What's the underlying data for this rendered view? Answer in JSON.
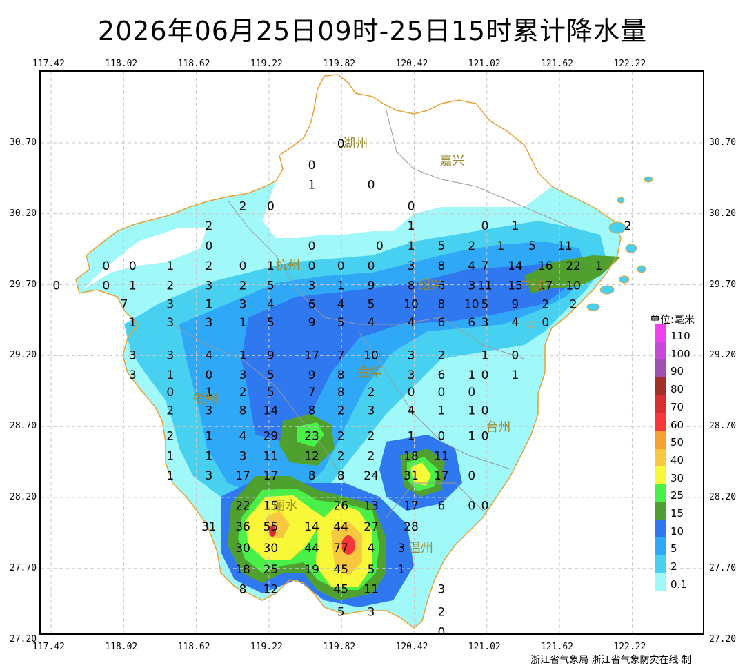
{
  "title": "2026年06月25日09时-25日15时累计降水量",
  "credit": "浙江省气象局  浙江省气象防灾在线 制",
  "axes": {
    "lon_ticks": [
      "117.42",
      "118.02",
      "118.62",
      "119.22",
      "119.82",
      "120.42",
      "121.02",
      "121.62",
      "122.22"
    ],
    "lat_ticks": [
      "30.70",
      "30.20",
      "29.70",
      "29.20",
      "28.70",
      "28.20",
      "27.70",
      "27.20"
    ]
  },
  "legend": {
    "title": "单位:毫米",
    "levels": [
      {
        "label": "110",
        "color": "#f040f0"
      },
      {
        "label": "100",
        "color": "#c848d8"
      },
      {
        "label": "90",
        "color": "#a050b0"
      },
      {
        "label": "80",
        "color": "#a03028"
      },
      {
        "label": "70",
        "color": "#d83030"
      },
      {
        "label": "60",
        "color": "#f83838"
      },
      {
        "label": "50",
        "color": "#f8a030"
      },
      {
        "label": "40",
        "color": "#f8c840"
      },
      {
        "label": "30",
        "color": "#f8f838"
      },
      {
        "label": "25",
        "color": "#48f048"
      },
      {
        "label": "15",
        "color": "#50a030"
      },
      {
        "label": "10",
        "color": "#3078f0"
      },
      {
        "label": "5",
        "color": "#30a8f8"
      },
      {
        "label": "2",
        "color": "#48d0f0"
      },
      {
        "label": "0.1",
        "color": "#a0f8f8"
      }
    ]
  },
  "cities": [
    {
      "name": "湖州",
      "lon": 119.94,
      "lat": 30.7
    },
    {
      "name": "嘉兴",
      "lon": 120.74,
      "lat": 30.58
    },
    {
      "name": "杭州",
      "lon": 119.38,
      "lat": 29.84
    },
    {
      "name": "绍兴",
      "lon": 120.56,
      "lat": 29.7
    },
    {
      "name": "宁波",
      "lon": 121.4,
      "lat": 29.7
    },
    {
      "name": "衢州",
      "lon": 118.7,
      "lat": 28.9
    },
    {
      "name": "金华",
      "lon": 120.06,
      "lat": 29.09
    },
    {
      "name": "台州",
      "lon": 121.12,
      "lat": 28.7
    },
    {
      "name": "丽水",
      "lon": 119.36,
      "lat": 28.15
    },
    {
      "name": "温州",
      "lon": 120.48,
      "lat": 27.85
    }
  ],
  "stations": [
    {
      "v": "0",
      "lon": 119.82,
      "lat": 30.7
    },
    {
      "v": "0",
      "lon": 119.58,
      "lat": 30.55
    },
    {
      "v": "1",
      "lon": 119.58,
      "lat": 30.41
    },
    {
      "v": "0",
      "lon": 120.07,
      "lat": 30.41
    },
    {
      "v": "2",
      "lon": 119.01,
      "lat": 30.26
    },
    {
      "v": "0",
      "lon": 119.24,
      "lat": 30.26
    },
    {
      "v": "0",
      "lon": 120.4,
      "lat": 30.26
    },
    {
      "v": "2",
      "lon": 118.73,
      "lat": 30.12
    },
    {
      "v": "1",
      "lon": 120.4,
      "lat": 30.12
    },
    {
      "v": "0",
      "lon": 121.01,
      "lat": 30.12
    },
    {
      "v": "1",
      "lon": 121.26,
      "lat": 30.12
    },
    {
      "v": "2",
      "lon": 122.19,
      "lat": 30.12
    },
    {
      "v": "0",
      "lon": 118.73,
      "lat": 29.98
    },
    {
      "v": "0",
      "lon": 119.58,
      "lat": 29.98
    },
    {
      "v": "0",
      "lon": 120.14,
      "lat": 29.98
    },
    {
      "v": "1",
      "lon": 120.4,
      "lat": 29.98
    },
    {
      "v": "5",
      "lon": 120.65,
      "lat": 29.98
    },
    {
      "v": "2",
      "lon": 120.9,
      "lat": 29.98
    },
    {
      "v": "1",
      "lon": 121.14,
      "lat": 29.98
    },
    {
      "v": "5",
      "lon": 121.4,
      "lat": 29.98
    },
    {
      "v": "11",
      "lon": 121.67,
      "lat": 29.98
    },
    {
      "v": "0",
      "lon": 117.88,
      "lat": 29.84
    },
    {
      "v": "0",
      "lon": 118.1,
      "lat": 29.84
    },
    {
      "v": "1",
      "lon": 118.41,
      "lat": 29.84
    },
    {
      "v": "2",
      "lon": 118.73,
      "lat": 29.84
    },
    {
      "v": "0",
      "lon": 119.01,
      "lat": 29.84
    },
    {
      "v": "1",
      "lon": 119.24,
      "lat": 29.84
    },
    {
      "v": "0",
      "lon": 119.58,
      "lat": 29.84
    },
    {
      "v": "0",
      "lon": 119.82,
      "lat": 29.84
    },
    {
      "v": "0",
      "lon": 120.07,
      "lat": 29.84
    },
    {
      "v": "3",
      "lon": 120.4,
      "lat": 29.84
    },
    {
      "v": "8",
      "lon": 120.65,
      "lat": 29.84
    },
    {
      "v": "4",
      "lon": 120.9,
      "lat": 29.84
    },
    {
      "v": "7",
      "lon": 121.01,
      "lat": 29.84
    },
    {
      "v": "14",
      "lon": 121.26,
      "lat": 29.84
    },
    {
      "v": "16",
      "lon": 121.51,
      "lat": 29.84
    },
    {
      "v": "22",
      "lon": 121.74,
      "lat": 29.84
    },
    {
      "v": "1",
      "lon": 121.95,
      "lat": 29.84
    },
    {
      "v": "0",
      "lon": 117.47,
      "lat": 29.7
    },
    {
      "v": "0",
      "lon": 117.88,
      "lat": 29.7
    },
    {
      "v": "1",
      "lon": 118.1,
      "lat": 29.7
    },
    {
      "v": "2",
      "lon": 118.41,
      "lat": 29.7
    },
    {
      "v": "3",
      "lon": 118.73,
      "lat": 29.7
    },
    {
      "v": "2",
      "lon": 119.01,
      "lat": 29.7
    },
    {
      "v": "5",
      "lon": 119.24,
      "lat": 29.7
    },
    {
      "v": "3",
      "lon": 119.58,
      "lat": 29.7
    },
    {
      "v": "1",
      "lon": 119.82,
      "lat": 29.7
    },
    {
      "v": "9",
      "lon": 120.07,
      "lat": 29.7
    },
    {
      "v": "8",
      "lon": 120.4,
      "lat": 29.7
    },
    {
      "v": "6",
      "lon": 120.65,
      "lat": 29.7
    },
    {
      "v": "3",
      "lon": 120.9,
      "lat": 29.7
    },
    {
      "v": "11",
      "lon": 121.01,
      "lat": 29.7
    },
    {
      "v": "15",
      "lon": 121.26,
      "lat": 29.7
    },
    {
      "v": "17",
      "lon": 121.51,
      "lat": 29.7
    },
    {
      "v": "10",
      "lon": 121.74,
      "lat": 29.7
    },
    {
      "v": "7",
      "lon": 118.03,
      "lat": 29.57
    },
    {
      "v": "3",
      "lon": 118.41,
      "lat": 29.57
    },
    {
      "v": "1",
      "lon": 118.73,
      "lat": 29.57
    },
    {
      "v": "3",
      "lon": 119.01,
      "lat": 29.57
    },
    {
      "v": "4",
      "lon": 119.24,
      "lat": 29.57
    },
    {
      "v": "6",
      "lon": 119.58,
      "lat": 29.57
    },
    {
      "v": "4",
      "lon": 119.82,
      "lat": 29.57
    },
    {
      "v": "5",
      "lon": 120.07,
      "lat": 29.57
    },
    {
      "v": "10",
      "lon": 120.4,
      "lat": 29.57
    },
    {
      "v": "8",
      "lon": 120.65,
      "lat": 29.57
    },
    {
      "v": "10",
      "lon": 120.9,
      "lat": 29.57
    },
    {
      "v": "5",
      "lon": 121.01,
      "lat": 29.57
    },
    {
      "v": "9",
      "lon": 121.26,
      "lat": 29.57
    },
    {
      "v": "2",
      "lon": 121.51,
      "lat": 29.57
    },
    {
      "v": "2",
      "lon": 121.74,
      "lat": 29.57
    },
    {
      "v": "1",
      "lon": 118.1,
      "lat": 29.44
    },
    {
      "v": "3",
      "lon": 118.41,
      "lat": 29.44
    },
    {
      "v": "3",
      "lon": 118.73,
      "lat": 29.44
    },
    {
      "v": "1",
      "lon": 119.01,
      "lat": 29.44
    },
    {
      "v": "5",
      "lon": 119.24,
      "lat": 29.44
    },
    {
      "v": "9",
      "lon": 119.58,
      "lat": 29.44
    },
    {
      "v": "5",
      "lon": 119.82,
      "lat": 29.44
    },
    {
      "v": "4",
      "lon": 120.07,
      "lat": 29.44
    },
    {
      "v": "4",
      "lon": 120.4,
      "lat": 29.44
    },
    {
      "v": "6",
      "lon": 120.65,
      "lat": 29.44
    },
    {
      "v": "6",
      "lon": 120.9,
      "lat": 29.44
    },
    {
      "v": "3",
      "lon": 121.01,
      "lat": 29.44
    },
    {
      "v": "4",
      "lon": 121.26,
      "lat": 29.44
    },
    {
      "v": "0",
      "lon": 121.51,
      "lat": 29.44
    },
    {
      "v": "3",
      "lon": 118.1,
      "lat": 29.21
    },
    {
      "v": "3",
      "lon": 118.41,
      "lat": 29.21
    },
    {
      "v": "4",
      "lon": 118.73,
      "lat": 29.21
    },
    {
      "v": "1",
      "lon": 119.01,
      "lat": 29.21
    },
    {
      "v": "9",
      "lon": 119.24,
      "lat": 29.21
    },
    {
      "v": "17",
      "lon": 119.58,
      "lat": 29.21
    },
    {
      "v": "7",
      "lon": 119.82,
      "lat": 29.21
    },
    {
      "v": "10",
      "lon": 120.07,
      "lat": 29.21
    },
    {
      "v": "3",
      "lon": 120.4,
      "lat": 29.21
    },
    {
      "v": "2",
      "lon": 120.65,
      "lat": 29.21
    },
    {
      "v": "1",
      "lon": 121.01,
      "lat": 29.21
    },
    {
      "v": "0",
      "lon": 121.26,
      "lat": 29.21
    },
    {
      "v": "3",
      "lon": 118.1,
      "lat": 29.07
    },
    {
      "v": "1",
      "lon": 118.41,
      "lat": 29.07
    },
    {
      "v": "0",
      "lon": 118.73,
      "lat": 29.07
    },
    {
      "v": "3",
      "lon": 119.01,
      "lat": 29.07
    },
    {
      "v": "5",
      "lon": 119.24,
      "lat": 29.07
    },
    {
      "v": "9",
      "lon": 119.58,
      "lat": 29.07
    },
    {
      "v": "8",
      "lon": 119.82,
      "lat": 29.07
    },
    {
      "v": "3",
      "lon": 120.4,
      "lat": 29.07
    },
    {
      "v": "6",
      "lon": 120.65,
      "lat": 29.07
    },
    {
      "v": "1",
      "lon": 120.9,
      "lat": 29.07
    },
    {
      "v": "0",
      "lon": 121.01,
      "lat": 29.07
    },
    {
      "v": "1",
      "lon": 121.26,
      "lat": 29.07
    },
    {
      "v": "0",
      "lon": 118.41,
      "lat": 28.95
    },
    {
      "v": "1",
      "lon": 118.73,
      "lat": 28.95
    },
    {
      "v": "2",
      "lon": 119.01,
      "lat": 28.95
    },
    {
      "v": "5",
      "lon": 119.24,
      "lat": 28.95
    },
    {
      "v": "7",
      "lon": 119.58,
      "lat": 28.95
    },
    {
      "v": "8",
      "lon": 119.82,
      "lat": 28.95
    },
    {
      "v": "2",
      "lon": 120.07,
      "lat": 28.95
    },
    {
      "v": "0",
      "lon": 120.4,
      "lat": 28.95
    },
    {
      "v": "0",
      "lon": 120.65,
      "lat": 28.95
    },
    {
      "v": "0",
      "lon": 120.9,
      "lat": 28.95
    },
    {
      "v": "2",
      "lon": 118.41,
      "lat": 28.82
    },
    {
      "v": "3",
      "lon": 118.73,
      "lat": 28.82
    },
    {
      "v": "8",
      "lon": 119.01,
      "lat": 28.82
    },
    {
      "v": "14",
      "lon": 119.24,
      "lat": 28.82
    },
    {
      "v": "8",
      "lon": 119.58,
      "lat": 28.82
    },
    {
      "v": "2",
      "lon": 119.82,
      "lat": 28.82
    },
    {
      "v": "3",
      "lon": 120.07,
      "lat": 28.82
    },
    {
      "v": "4",
      "lon": 120.4,
      "lat": 28.82
    },
    {
      "v": "1",
      "lon": 120.65,
      "lat": 28.82
    },
    {
      "v": "1",
      "lon": 120.9,
      "lat": 28.82
    },
    {
      "v": "0",
      "lon": 121.01,
      "lat": 28.82
    },
    {
      "v": "2",
      "lon": 118.41,
      "lat": 28.64
    },
    {
      "v": "1",
      "lon": 118.73,
      "lat": 28.64
    },
    {
      "v": "4",
      "lon": 119.01,
      "lat": 28.64
    },
    {
      "v": "29",
      "lon": 119.24,
      "lat": 28.64
    },
    {
      "v": "23",
      "lon": 119.58,
      "lat": 28.64
    },
    {
      "v": "2",
      "lon": 119.82,
      "lat": 28.64
    },
    {
      "v": "2",
      "lon": 120.07,
      "lat": 28.64
    },
    {
      "v": "1",
      "lon": 120.4,
      "lat": 28.64
    },
    {
      "v": "0",
      "lon": 120.65,
      "lat": 28.64
    },
    {
      "v": "1",
      "lon": 120.9,
      "lat": 28.64
    },
    {
      "v": "0",
      "lon": 121.01,
      "lat": 28.64
    },
    {
      "v": "1",
      "lon": 118.41,
      "lat": 28.5
    },
    {
      "v": "1",
      "lon": 118.73,
      "lat": 28.5
    },
    {
      "v": "3",
      "lon": 119.01,
      "lat": 28.5
    },
    {
      "v": "11",
      "lon": 119.24,
      "lat": 28.5
    },
    {
      "v": "12",
      "lon": 119.58,
      "lat": 28.5
    },
    {
      "v": "2",
      "lon": 119.82,
      "lat": 28.5
    },
    {
      "v": "2",
      "lon": 120.07,
      "lat": 28.5
    },
    {
      "v": "18",
      "lon": 120.4,
      "lat": 28.5
    },
    {
      "v": "11",
      "lon": 120.65,
      "lat": 28.5
    },
    {
      "v": "1",
      "lon": 118.41,
      "lat": 28.36
    },
    {
      "v": "3",
      "lon": 118.73,
      "lat": 28.36
    },
    {
      "v": "17",
      "lon": 119.01,
      "lat": 28.36
    },
    {
      "v": "17",
      "lon": 119.24,
      "lat": 28.36
    },
    {
      "v": "8",
      "lon": 119.58,
      "lat": 28.36
    },
    {
      "v": "8",
      "lon": 119.82,
      "lat": 28.36
    },
    {
      "v": "24",
      "lon": 120.07,
      "lat": 28.36
    },
    {
      "v": "31",
      "lon": 120.4,
      "lat": 28.36
    },
    {
      "v": "17",
      "lon": 120.65,
      "lat": 28.36
    },
    {
      "v": "0",
      "lon": 120.9,
      "lat": 28.36
    },
    {
      "v": "22",
      "lon": 119.01,
      "lat": 28.15
    },
    {
      "v": "15",
      "lon": 119.24,
      "lat": 28.15
    },
    {
      "v": "26",
      "lon": 119.82,
      "lat": 28.15
    },
    {
      "v": "13",
      "lon": 120.07,
      "lat": 28.15
    },
    {
      "v": "17",
      "lon": 120.4,
      "lat": 28.15
    },
    {
      "v": "6",
      "lon": 120.65,
      "lat": 28.15
    },
    {
      "v": "0",
      "lon": 120.9,
      "lat": 28.15
    },
    {
      "v": "0",
      "lon": 121.01,
      "lat": 28.15
    },
    {
      "v": "31",
      "lon": 118.73,
      "lat": 28.0
    },
    {
      "v": "36",
      "lon": 119.01,
      "lat": 28.0
    },
    {
      "v": "55",
      "lon": 119.24,
      "lat": 28.0
    },
    {
      "v": "14",
      "lon": 119.58,
      "lat": 28.0
    },
    {
      "v": "44",
      "lon": 119.82,
      "lat": 28.0
    },
    {
      "v": "27",
      "lon": 120.07,
      "lat": 28.0
    },
    {
      "v": "28",
      "lon": 120.4,
      "lat": 28.0
    },
    {
      "v": "30",
      "lon": 119.01,
      "lat": 27.85
    },
    {
      "v": "30",
      "lon": 119.24,
      "lat": 27.85
    },
    {
      "v": "44",
      "lon": 119.58,
      "lat": 27.85
    },
    {
      "v": "77",
      "lon": 119.82,
      "lat": 27.85
    },
    {
      "v": "4",
      "lon": 120.07,
      "lat": 27.85
    },
    {
      "v": "3",
      "lon": 120.32,
      "lat": 27.85
    },
    {
      "v": "18",
      "lon": 119.01,
      "lat": 27.7
    },
    {
      "v": "25",
      "lon": 119.24,
      "lat": 27.7
    },
    {
      "v": "19",
      "lon": 119.58,
      "lat": 27.7
    },
    {
      "v": "45",
      "lon": 119.82,
      "lat": 27.7
    },
    {
      "v": "5",
      "lon": 120.07,
      "lat": 27.7
    },
    {
      "v": "1",
      "lon": 120.32,
      "lat": 27.7
    },
    {
      "v": "8",
      "lon": 119.01,
      "lat": 27.56
    },
    {
      "v": "12",
      "lon": 119.24,
      "lat": 27.56
    },
    {
      "v": "45",
      "lon": 119.82,
      "lat": 27.56
    },
    {
      "v": "11",
      "lon": 120.07,
      "lat": 27.56
    },
    {
      "v": "3",
      "lon": 120.65,
      "lat": 27.56
    },
    {
      "v": "5",
      "lon": 119.82,
      "lat": 27.4
    },
    {
      "v": "3",
      "lon": 120.07,
      "lat": 27.4
    },
    {
      "v": "2",
      "lon": 120.65,
      "lat": 27.4
    },
    {
      "v": "0",
      "lon": 120.65,
      "lat": 27.26
    }
  ]
}
